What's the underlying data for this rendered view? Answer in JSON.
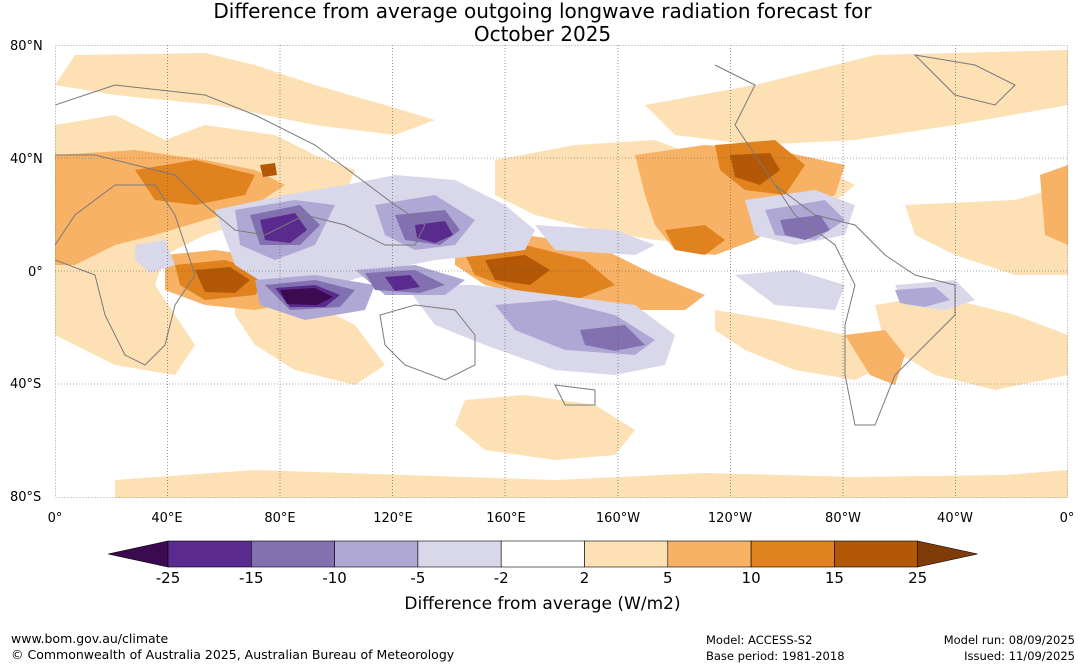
{
  "title_line1": "Difference from average outgoing longwave radiation forecast for",
  "title_line2": "October 2025",
  "lat_labels": [
    "80°N",
    "40°N",
    "0°",
    "40°S",
    "80°S"
  ],
  "lon_labels": [
    "0°",
    "40°E",
    "80°E",
    "120°E",
    "160°E",
    "160°W",
    "120°W",
    "80°W",
    "40°W",
    "0°"
  ],
  "colorbar": {
    "ticks": [
      "-25",
      "-15",
      "-10",
      "-5",
      "-2",
      "2",
      "5",
      "10",
      "15",
      "25"
    ],
    "colors": [
      "#3b0a50",
      "#5a2a8e",
      "#8270b0",
      "#b0a8d4",
      "#d9d8eb",
      "#ffffff",
      "#fde0b4",
      "#f7b265",
      "#e0821e",
      "#b35806",
      "#7f3b08"
    ],
    "label": "Difference from average (W/m2)"
  },
  "footer": {
    "url": "www.bom.gov.au/climate",
    "copyright": "© Commonwealth of Australia 2025, Australian Bureau of Meteorology",
    "model": "Model: ACCESS-S2",
    "base_period": "Base period: 1981-2018",
    "model_run": "Model run: 08/09/2025",
    "issued": "Issued: 11/09/2025"
  }
}
